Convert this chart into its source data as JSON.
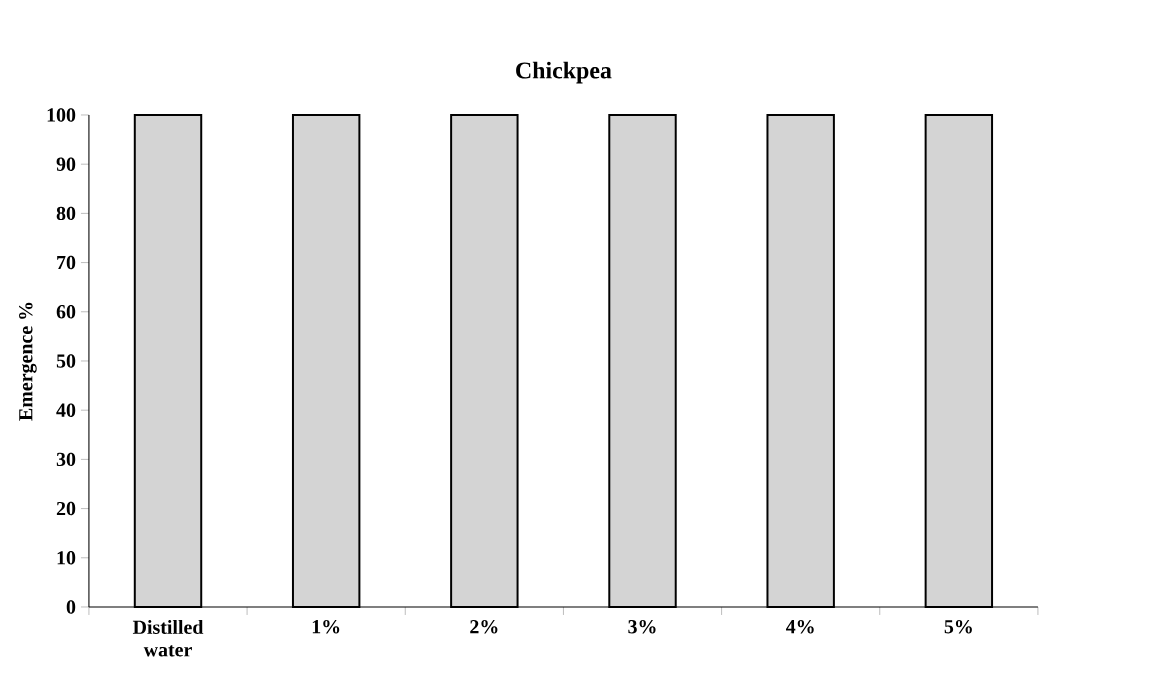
{
  "chart_data": {
    "type": "bar",
    "title": "Chickpea",
    "ylabel": "Emergence %",
    "categories": [
      "Distilled water",
      "1%",
      "2%",
      "3%",
      "4%",
      "5%"
    ],
    "values": [
      100,
      100,
      100,
      100,
      100,
      100
    ],
    "color": "#d4d4d4",
    "ylim": [
      0,
      100
    ],
    "yticks": [
      0,
      10,
      20,
      30,
      40,
      50,
      60,
      70,
      80,
      90,
      100
    ]
  }
}
